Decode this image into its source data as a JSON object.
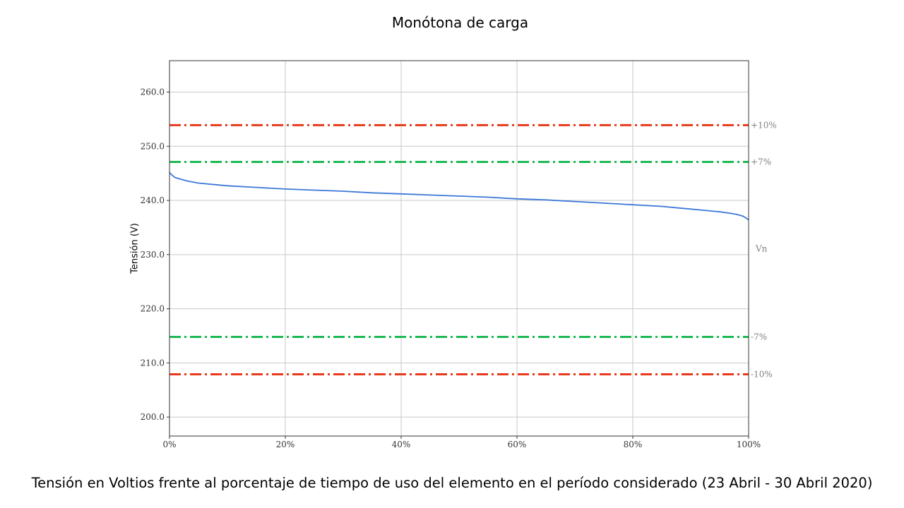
{
  "chart_data": {
    "type": "line",
    "title": "Monótona de carga",
    "caption": "Tensión en Voltios frente al porcentaje de tiempo de uso del elemento en el período considerado (23 Abril - 30 Abril 2020)",
    "xlabel": "",
    "ylabel": "Tensión (V)",
    "xlim": [
      0,
      100
    ],
    "ylim": [
      196.5,
      265.8
    ],
    "x_ticks": [
      0,
      20,
      40,
      60,
      80,
      100
    ],
    "x_tick_labels": [
      "0%",
      "20%",
      "40%",
      "60%",
      "80%",
      "100%"
    ],
    "y_ticks": [
      200,
      210,
      220,
      230,
      240,
      250,
      260
    ],
    "y_tick_labels": [
      "200.0",
      "210.0",
      "220.0",
      "230.0",
      "240.0",
      "250.0",
      "260.0"
    ],
    "grid": true,
    "series": [
      {
        "color": "#3c78d8",
        "x": [
          0,
          0.2,
          0.5,
          1,
          2,
          3,
          5,
          8,
          10,
          15,
          20,
          25,
          30,
          35,
          40,
          45,
          50,
          55,
          60,
          65,
          70,
          75,
          80,
          85,
          88,
          90,
          92,
          95,
          97,
          98,
          99,
          99.5,
          100
        ],
        "y": [
          245.2,
          244.9,
          244.6,
          244.2,
          243.9,
          243.6,
          243.2,
          242.9,
          242.7,
          242.4,
          242.1,
          241.9,
          241.7,
          241.4,
          241.2,
          241.0,
          240.8,
          240.6,
          240.3,
          240.1,
          239.8,
          239.5,
          239.2,
          238.9,
          238.6,
          238.4,
          238.2,
          237.9,
          237.6,
          237.4,
          237.1,
          236.8,
          236.4
        ]
      }
    ],
    "reference_lines": [
      {
        "y": 253.9,
        "label": "+10%",
        "color": "#e8391a",
        "style": "dashdot"
      },
      {
        "y": 247.1,
        "label": "+7%",
        "color": "#1db954",
        "style": "dashdot"
      },
      {
        "y": 214.8,
        "label": "-7%",
        "color": "#1db954",
        "style": "dashdot"
      },
      {
        "y": 207.9,
        "label": "-10%",
        "color": "#e8391a",
        "style": "dashdot"
      }
    ],
    "annotations": [
      {
        "y": 231.1,
        "label": "Vn",
        "color": "#808080"
      }
    ]
  }
}
